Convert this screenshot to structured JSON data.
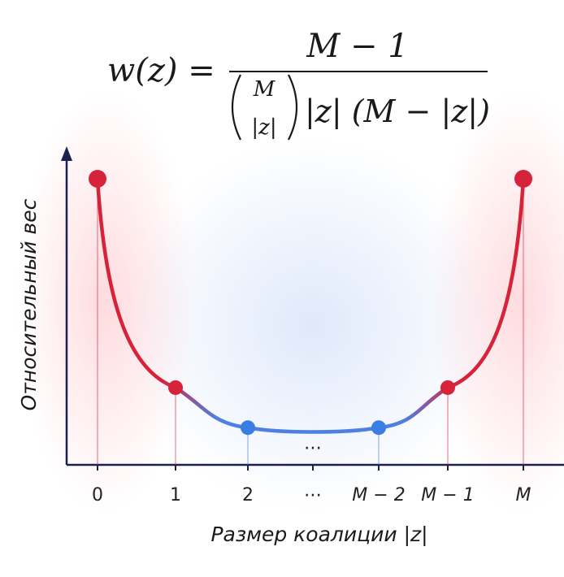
{
  "formula": {
    "lhs": "w(z) =",
    "numerator": "M − 1",
    "binom_top": "M",
    "binom_bottom": "|z|",
    "denominator_rest": "|z| (M − |z|)"
  },
  "chart_data": {
    "type": "line",
    "xlabel": "Размер коалиции |z|",
    "ylabel": "Относительный вес",
    "x_ticks": [
      "0",
      "1",
      "2",
      "⋯",
      "M − 2",
      "M − 1",
      "M"
    ],
    "middle_ellipsis": "⋯",
    "values": [
      1.0,
      0.27,
      0.13,
      null,
      0.13,
      0.27,
      1.0
    ],
    "ylim": [
      0,
      1.1
    ],
    "grid": false,
    "colors": {
      "extreme": "#d6233a",
      "middle": "#3b7ee3",
      "axis": "#1a2150"
    }
  }
}
